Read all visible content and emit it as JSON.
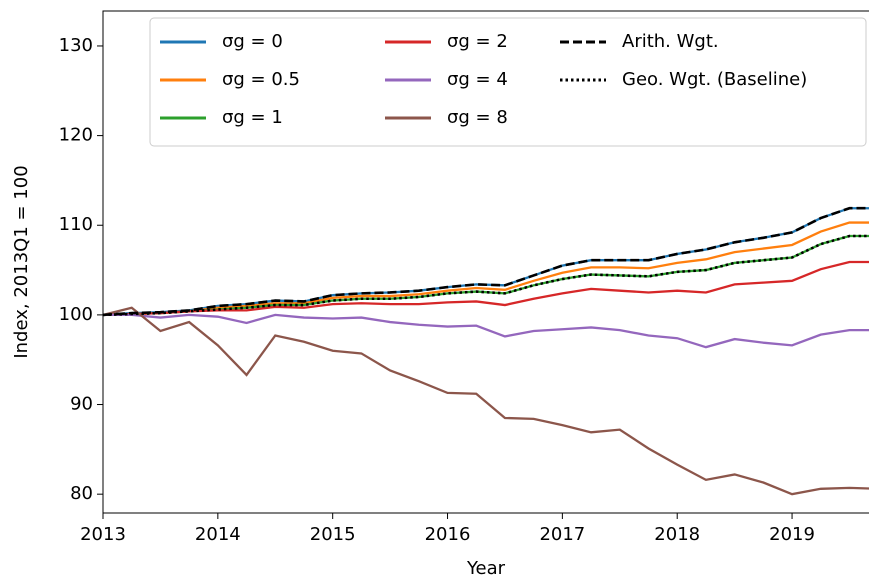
{
  "chart_data": {
    "type": "line",
    "xlabel": "Year",
    "ylabel": "Index, 2013Q1 = 100",
    "x": [
      2013,
      2013.25,
      2013.5,
      2013.75,
      2014,
      2014.25,
      2014.5,
      2014.75,
      2015,
      2015.25,
      2015.5,
      2015.75,
      2016,
      2016.25,
      2016.5,
      2016.75,
      2017,
      2017.25,
      2017.5,
      2017.75,
      2018,
      2018.25,
      2018.5,
      2018.75,
      2019,
      2019.25,
      2019.5,
      2019.75
    ],
    "series": [
      {
        "name": "σg = 0",
        "color": "#1f77b4",
        "style": "solid",
        "values": [
          100,
          100.2,
          100.3,
          100.5,
          101.0,
          101.2,
          101.6,
          101.5,
          102.2,
          102.4,
          102.5,
          102.7,
          103.1,
          103.4,
          103.3,
          104.4,
          105.5,
          106.1,
          106.1,
          106.1,
          106.8,
          107.3,
          108.1,
          108.6,
          109.2,
          110.8,
          111.9,
          111.9
        ]
      },
      {
        "name": "σg = 0.5",
        "color": "#ff7f0e",
        "style": "solid",
        "values": [
          100,
          100.1,
          100.2,
          100.4,
          100.8,
          101.0,
          101.3,
          101.3,
          101.9,
          102.1,
          102.1,
          102.3,
          102.7,
          103.0,
          102.8,
          103.8,
          104.7,
          105.3,
          105.3,
          105.2,
          105.8,
          106.2,
          107.0,
          107.4,
          107.8,
          109.3,
          110.3,
          110.3
        ]
      },
      {
        "name": "σg = 1",
        "color": "#2ca02c",
        "style": "solid",
        "values": [
          100,
          100.1,
          100.2,
          100.4,
          100.6,
          100.8,
          101.1,
          101.1,
          101.6,
          101.8,
          101.8,
          102.0,
          102.4,
          102.6,
          102.4,
          103.3,
          104.0,
          104.5,
          104.4,
          104.3,
          104.8,
          105.0,
          105.8,
          106.1,
          106.4,
          107.9,
          108.8,
          108.8
        ]
      },
      {
        "name": "σg = 2",
        "color": "#d62728",
        "style": "solid",
        "values": [
          100,
          100.1,
          100.2,
          100.4,
          100.5,
          100.5,
          100.9,
          100.8,
          101.2,
          101.3,
          101.2,
          101.2,
          101.4,
          101.5,
          101.1,
          101.8,
          102.4,
          102.9,
          102.7,
          102.5,
          102.7,
          102.5,
          103.4,
          103.6,
          103.8,
          105.1,
          105.9,
          105.9
        ]
      },
      {
        "name": "σg = 4",
        "color": "#9467bd",
        "style": "solid",
        "values": [
          100,
          100.0,
          99.7,
          100.0,
          99.8,
          99.1,
          100.0,
          99.7,
          99.6,
          99.7,
          99.2,
          98.9,
          98.7,
          98.8,
          97.6,
          98.2,
          98.4,
          98.6,
          98.3,
          97.7,
          97.4,
          96.4,
          97.3,
          96.9,
          96.6,
          97.8,
          98.3,
          98.3
        ]
      },
      {
        "name": "σg = 8",
        "color": "#8c564b",
        "style": "solid",
        "values": [
          100,
          100.8,
          98.2,
          99.2,
          96.6,
          93.3,
          97.7,
          97.0,
          96.0,
          95.7,
          93.8,
          92.6,
          91.3,
          91.2,
          88.5,
          88.4,
          87.7,
          86.9,
          87.2,
          85.1,
          83.3,
          81.6,
          82.2,
          81.3,
          80.0,
          80.6,
          80.7,
          80.6
        ]
      },
      {
        "name": "Arith. Wgt.",
        "color": "#000000",
        "style": "dashed",
        "values": [
          100,
          100.2,
          100.3,
          100.5,
          101.0,
          101.2,
          101.6,
          101.5,
          102.2,
          102.4,
          102.5,
          102.7,
          103.1,
          103.4,
          103.3,
          104.4,
          105.5,
          106.1,
          106.1,
          106.1,
          106.8,
          107.3,
          108.1,
          108.6,
          109.2,
          110.8,
          111.9,
          111.9
        ]
      },
      {
        "name": "Geo. Wgt. (Baseline)",
        "color": "#000000",
        "style": "dotted",
        "values": [
          100,
          100.1,
          100.2,
          100.4,
          100.6,
          100.8,
          101.1,
          101.1,
          101.6,
          101.8,
          101.8,
          102.0,
          102.4,
          102.6,
          102.4,
          103.3,
          104.0,
          104.5,
          104.4,
          104.3,
          104.8,
          105.0,
          105.8,
          106.1,
          106.4,
          107.9,
          108.8,
          108.8
        ]
      }
    ],
    "xlim": [
      2013,
      2019.67
    ],
    "xticks": [
      2013,
      2014,
      2015,
      2016,
      2017,
      2018,
      2019
    ],
    "ylim": [
      77.9,
      133.9
    ],
    "yticks": [
      80,
      90,
      100,
      110,
      120,
      130
    ],
    "grid": false
  }
}
